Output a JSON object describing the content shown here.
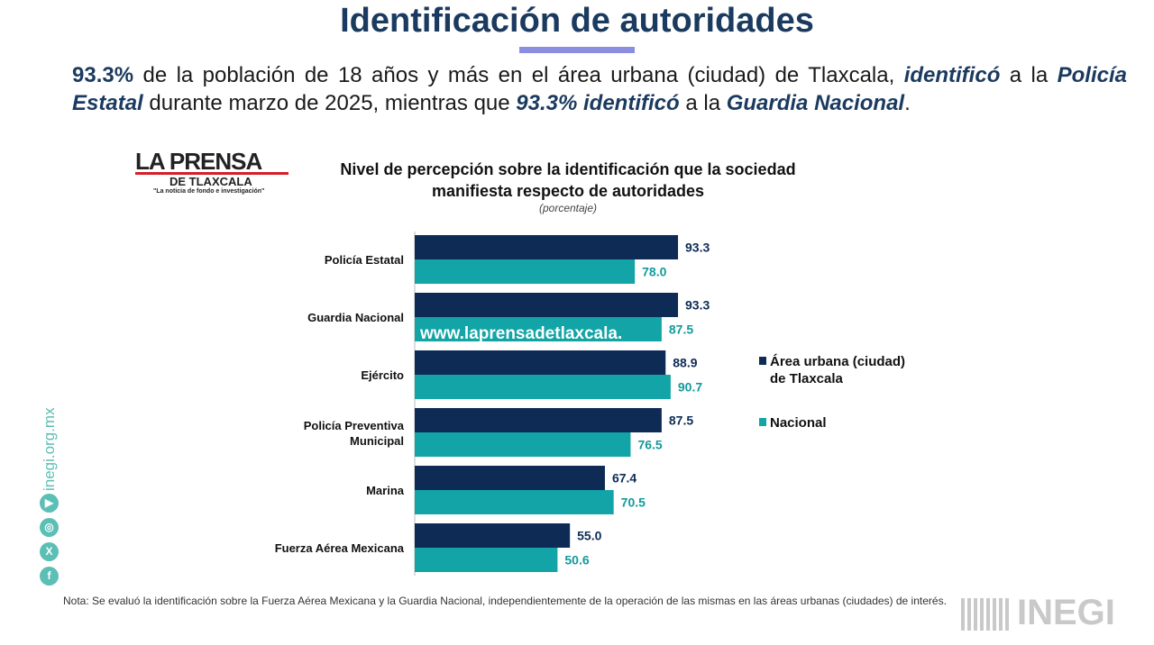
{
  "header": {
    "title": "Identificación de autoridades"
  },
  "summary": {
    "p1": "93.3%",
    "p2": " de la población de 18 años y más en el área urbana (ciudad) de Tlaxcala, ",
    "p3": "identificó",
    "p4": " a la ",
    "p5": "Policía Estatal",
    "p6": " durante marzo de 2025, mientras que ",
    "p7": "93.3% identificó",
    "p8": " a la ",
    "p9": "Guardia Nacional",
    "p10": "."
  },
  "watermark": {
    "logo_main": "LA PRENSA",
    "logo_sub": "DE TLAXCALA",
    "logo_tag": "\"La noticia de fondo e investigación\"",
    "url": "www.laprensadetlaxcala."
  },
  "sidebar": {
    "url": "inegi.org.mx",
    "icons": [
      "youtube-icon",
      "instagram-icon",
      "x-icon",
      "facebook-icon"
    ]
  },
  "footer": {
    "note": "Nota: Se evaluó la identificación sobre la Fuerza Aérea Mexicana y la Guardia Nacional, independientemente de la operación de las mismas en las áreas urbanas (ciudades) de interés.",
    "logo": "INEGI"
  },
  "chart_data": {
    "type": "bar",
    "orientation": "horizontal",
    "title_line1": "Nivel de percepción sobre la identificación que la sociedad",
    "title_line2": "manifiesta respecto de autoridades",
    "subtitle": "(porcentaje)",
    "categories": [
      "Policía Estatal",
      "Guardia Nacional",
      "Ejército",
      "Policía Preventiva Municipal",
      "Marina",
      "Fuerza Aérea Mexicana"
    ],
    "series": [
      {
        "name": "Área urbana (ciudad) de Tlaxcala",
        "color": "#0d2b55",
        "label_color": "#0d2b55",
        "values": [
          93.3,
          93.3,
          88.9,
          87.5,
          67.4,
          55.0
        ]
      },
      {
        "name": "Nacional",
        "color": "#12a4a6",
        "label_color": "#129a9c",
        "values": [
          78.0,
          87.5,
          90.7,
          76.5,
          70.5,
          50.6
        ]
      }
    ],
    "xlim": [
      0,
      100
    ],
    "legend": "right"
  }
}
